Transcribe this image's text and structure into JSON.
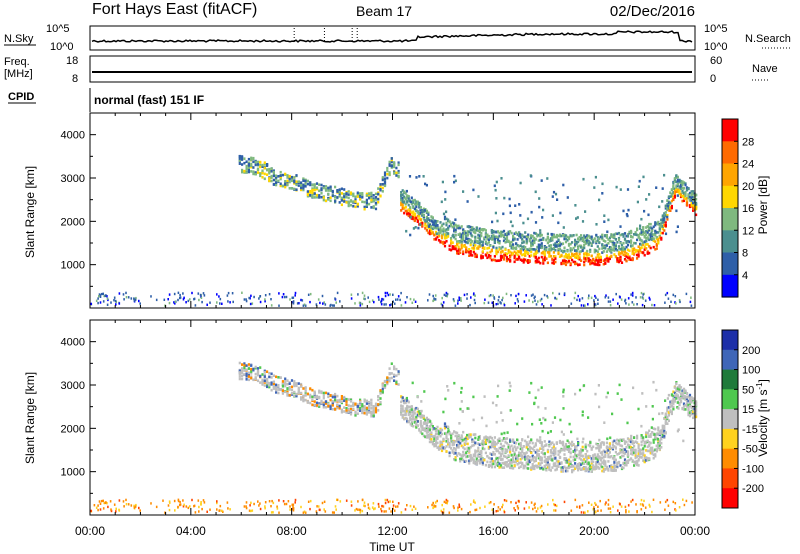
{
  "header": {
    "title": "Fort Hays East (fitACF)",
    "beam": "Beam 17",
    "date": "02/Dec/2016"
  },
  "panels": {
    "nsky": {
      "left_label": "N.Sky",
      "right_label": "N.Search",
      "left_ticks": [
        "10^5",
        "10^0"
      ],
      "right_ticks": [
        "10^5",
        "10^0"
      ]
    },
    "freq": {
      "left_label_1": "Freq.",
      "left_label_2": "[MHz]",
      "right_label": "Nave",
      "left_ticks": [
        "18",
        "8"
      ],
      "right_ticks": [
        "60",
        "0"
      ]
    },
    "cpid": {
      "label": "CPID",
      "text": "normal (fast) 151 IF"
    }
  },
  "colorbars": {
    "power": {
      "label": "Power [dB]",
      "ticks": [
        "28",
        "24",
        "20",
        "16",
        "12",
        "8",
        "4"
      ],
      "colors": [
        "#ff0000",
        "#ff6a00",
        "#ffa500",
        "#ffd700",
        "#7fb97f",
        "#4b8f8f",
        "#2e5fa8",
        "#0000ff"
      ]
    },
    "velocity": {
      "label": "Velocity [m s",
      "label_sup": "-1",
      "label_end": "]",
      "ticks": [
        "200",
        "100",
        "50",
        "15",
        "-15",
        "-50",
        "-100",
        "-200"
      ],
      "colors": [
        "#1d2fa8",
        "#3f66b8",
        "#1f7a3a",
        "#4fc84f",
        "#bfbfbf",
        "#ffd21f",
        "#ff8c00",
        "#ff4500",
        "#ff0000"
      ]
    }
  },
  "chart_data": [
    {
      "type": "heatmap",
      "name": "Power",
      "ylabel": "Slant Range [km]",
      "xlabel": "",
      "xlim": [
        "00:00",
        "24:00"
      ],
      "ylim": [
        0,
        4500
      ],
      "yticks": [
        "1000",
        "2000",
        "3000",
        "4000"
      ],
      "xticks": [
        "00:00",
        "04:00",
        "08:00",
        "12:00",
        "16:00",
        "20:00",
        "00:00"
      ],
      "echo_traces": [
        {
          "feature": "early high-range echo",
          "x_hours": [
            5.9,
            6.6,
            7.3,
            8.0,
            8.8,
            9.6,
            10.5,
            11.3,
            11.9,
            12.2
          ],
          "y_km": [
            3350,
            3300,
            3050,
            2950,
            2750,
            2650,
            2500,
            2500,
            3350,
            3200
          ]
        },
        {
          "feature": "descending band",
          "x_hours": [
            12.3,
            13.0,
            13.6,
            14.5,
            16.0,
            17.5,
            19.0,
            20.5,
            21.5,
            22.5,
            23.2,
            24.0
          ],
          "y_km": [
            2350,
            2050,
            1700,
            1350,
            1200,
            1150,
            1100,
            1100,
            1200,
            1450,
            2700,
            2250
          ]
        }
      ]
    },
    {
      "type": "heatmap",
      "name": "Velocity",
      "ylabel": "Slant Range [km]",
      "xlabel": "Time UT",
      "xlim": [
        "00:00",
        "24:00"
      ],
      "ylim": [
        0,
        4500
      ],
      "yticks": [
        "1000",
        "2000",
        "3000",
        "4000"
      ],
      "xticks": [
        "00:00",
        "04:00",
        "08:00",
        "12:00",
        "16:00",
        "20:00",
        "00:00"
      ],
      "echo_traces": [
        {
          "feature": "early high-range echo",
          "x_hours": [
            5.9,
            6.6,
            7.3,
            8.0,
            8.8,
            9.6,
            10.5,
            11.3,
            11.9,
            12.2
          ],
          "y_km": [
            3350,
            3300,
            3050,
            2950,
            2750,
            2650,
            2500,
            2500,
            3350,
            3200
          ]
        },
        {
          "feature": "descending band",
          "x_hours": [
            12.3,
            13.0,
            13.6,
            14.5,
            16.0,
            17.5,
            19.0,
            20.5,
            21.5,
            22.5,
            23.2,
            24.0
          ],
          "y_km": [
            2350,
            2050,
            1700,
            1350,
            1200,
            1150,
            1100,
            1100,
            1200,
            1450,
            2700,
            2250
          ]
        }
      ]
    }
  ]
}
